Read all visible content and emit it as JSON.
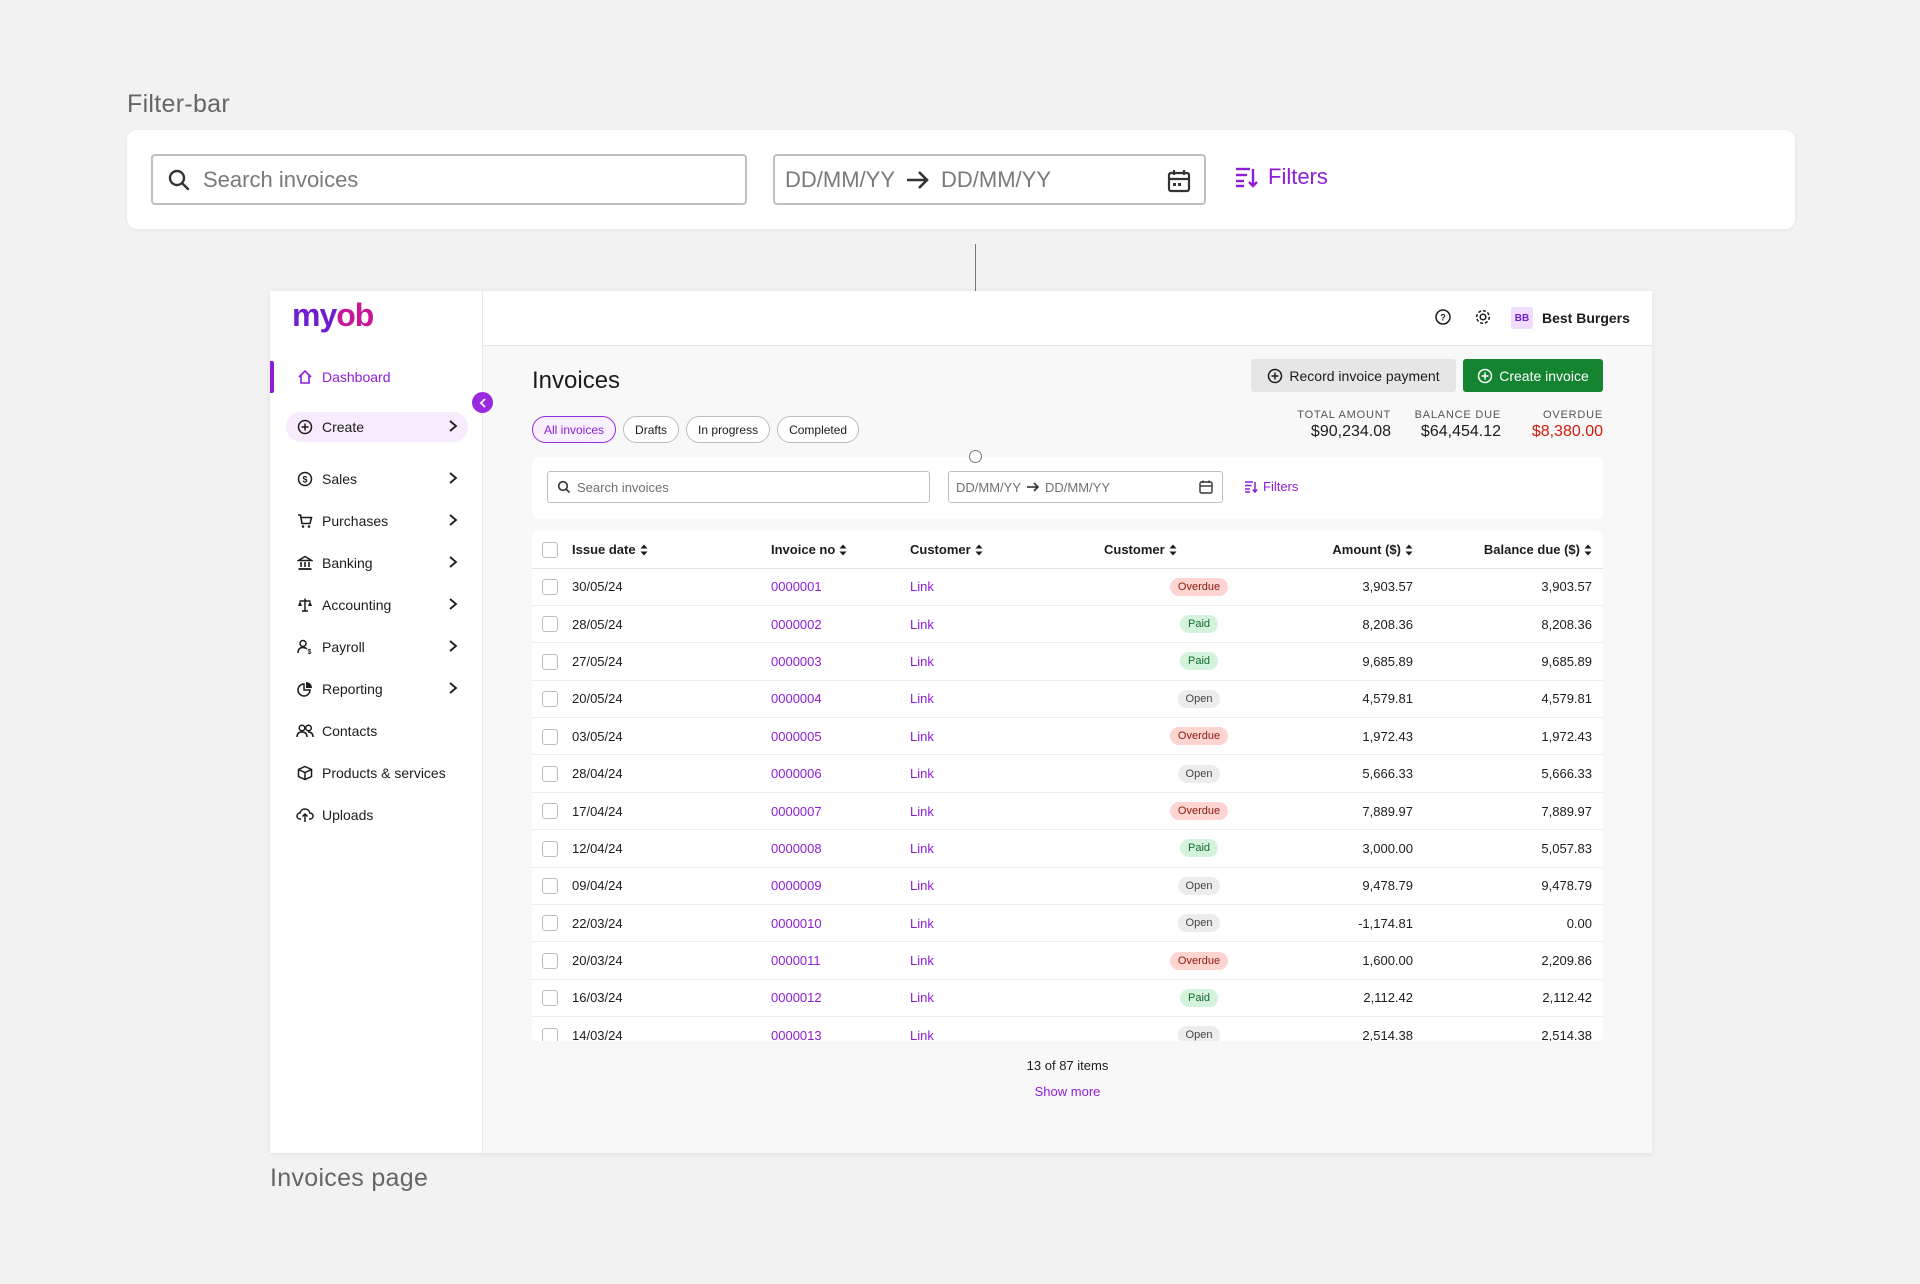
{
  "labels": {
    "filter_bar": "Filter-bar",
    "invoices_page": "Invoices page"
  },
  "big_filter_bar": {
    "search_placeholder": "Search invoices",
    "date_from": "DD/MM/YY",
    "date_to": "DD/MM/YY",
    "filters_label": "Filters"
  },
  "app": {
    "logo": {
      "my": "my",
      "ob": "ob"
    },
    "sidebar": {
      "items": [
        {
          "label": "Dashboard",
          "icon": "home-icon"
        },
        {
          "label": "Create",
          "icon": "plus-circle-icon"
        },
        {
          "label": "Sales",
          "icon": "dollar-icon"
        },
        {
          "label": "Purchases",
          "icon": "cart-icon"
        },
        {
          "label": "Banking",
          "icon": "bank-icon"
        },
        {
          "label": "Accounting",
          "icon": "scales-icon"
        },
        {
          "label": "Payroll",
          "icon": "person-dollar-icon"
        },
        {
          "label": "Reporting",
          "icon": "pie-chart-icon"
        },
        {
          "label": "Contacts",
          "icon": "people-icon"
        },
        {
          "label": "Products & services",
          "icon": "box-icon"
        },
        {
          "label": "Uploads",
          "icon": "cloud-upload-icon"
        }
      ]
    },
    "topbar": {
      "avatar_initials": "BB",
      "business_name": "Best Burgers"
    },
    "page_title": "Invoices",
    "buttons": {
      "record_payment": "Record invoice payment",
      "create_invoice": "Create invoice"
    },
    "tabs": [
      "All invoices",
      "Drafts",
      "In progress",
      "Completed"
    ],
    "summary": {
      "total_amount": {
        "label": "TOTAL AMOUNT",
        "value": "$90,234.08"
      },
      "balance_due": {
        "label": "BALANCE DUE",
        "value": "$64,454.12"
      },
      "overdue": {
        "label": "OVERDUE",
        "value": "$8,380.00"
      }
    },
    "filter": {
      "search_placeholder": "Search invoices",
      "date_from": "DD/MM/YY",
      "date_to": "DD/MM/YY",
      "filters_label": "Filters"
    },
    "table": {
      "headers": [
        "Issue date",
        "Invoice no",
        "Customer",
        "Customer",
        "Amount ($)",
        "Balance due ($)"
      ],
      "rows": [
        {
          "date": "30/05/24",
          "invoice": "0000001",
          "customer": "Link",
          "status": "Overdue",
          "amount": "3,903.57",
          "balance": "3,903.57"
        },
        {
          "date": "28/05/24",
          "invoice": "0000002",
          "customer": "Link",
          "status": "Paid",
          "amount": "8,208.36",
          "balance": "8,208.36"
        },
        {
          "date": "27/05/24",
          "invoice": "0000003",
          "customer": "Link",
          "status": "Paid",
          "amount": "9,685.89",
          "balance": "9,685.89"
        },
        {
          "date": "20/05/24",
          "invoice": "0000004",
          "customer": "Link",
          "status": "Open",
          "amount": "4,579.81",
          "balance": "4,579.81"
        },
        {
          "date": "03/05/24",
          "invoice": "0000005",
          "customer": "Link",
          "status": "Overdue",
          "amount": "1,972.43",
          "balance": "1,972.43"
        },
        {
          "date": "28/04/24",
          "invoice": "0000006",
          "customer": "Link",
          "status": "Open",
          "amount": "5,666.33",
          "balance": "5,666.33"
        },
        {
          "date": "17/04/24",
          "invoice": "0000007",
          "customer": "Link",
          "status": "Overdue",
          "amount": "7,889.97",
          "balance": "7,889.97"
        },
        {
          "date": "12/04/24",
          "invoice": "0000008",
          "customer": "Link",
          "status": "Paid",
          "amount": "3,000.00",
          "balance": "5,057.83"
        },
        {
          "date": "09/04/24",
          "invoice": "0000009",
          "customer": "Link",
          "status": "Open",
          "amount": "9,478.79",
          "balance": "9,478.79"
        },
        {
          "date": "22/03/24",
          "invoice": "0000010",
          "customer": "Link",
          "status": "Open",
          "amount": "-1,174.81",
          "balance": "0.00"
        },
        {
          "date": "20/03/24",
          "invoice": "0000011",
          "customer": "Link",
          "status": "Overdue",
          "amount": "1,600.00",
          "balance": "2,209.86"
        },
        {
          "date": "16/03/24",
          "invoice": "0000012",
          "customer": "Link",
          "status": "Paid",
          "amount": "2,112.42",
          "balance": "2,112.42"
        },
        {
          "date": "14/03/24",
          "invoice": "0000013",
          "customer": "Link",
          "status": "Open",
          "amount": "2,514.38",
          "balance": "2,514.38"
        }
      ]
    },
    "pagination": {
      "count_text": "13 of 87 items",
      "show_more": "Show more"
    }
  },
  "colors": {
    "accent": "#8f1dd8",
    "create_green": "#148431",
    "overdue_red": "#d4180c"
  }
}
